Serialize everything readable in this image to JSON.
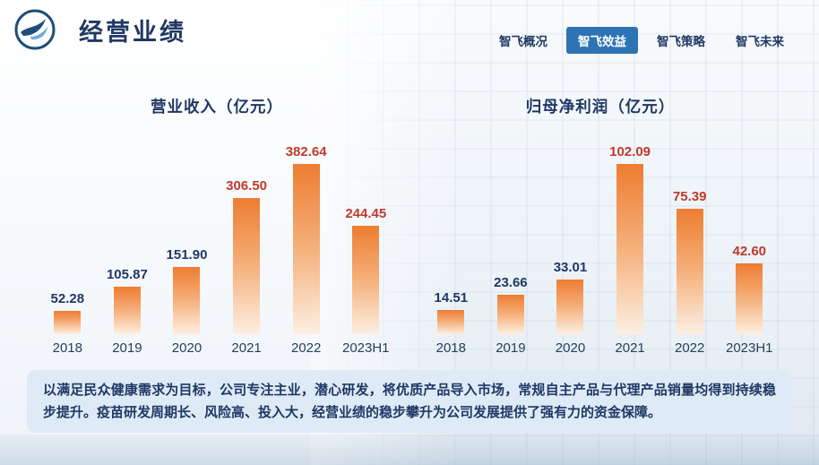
{
  "page": {
    "title": "经营业绩",
    "logo_icon": "bird-swoosh-logo"
  },
  "nav": {
    "items": [
      {
        "label": "智飞概况",
        "active": false
      },
      {
        "label": "智飞效益",
        "active": true
      },
      {
        "label": "智飞策略",
        "active": false
      },
      {
        "label": "智飞未来",
        "active": false
      }
    ]
  },
  "chart_data": [
    {
      "type": "bar",
      "title": "营业收入（亿元）",
      "categories": [
        "2018",
        "2019",
        "2020",
        "2021",
        "2022",
        "2023H1"
      ],
      "values": [
        52.28,
        105.87,
        151.9,
        306.5,
        382.64,
        244.45
      ],
      "ylim": [
        0,
        382.64
      ],
      "grid": false,
      "legend": "none",
      "value_label_colors": [
        "navy",
        "navy",
        "navy",
        "red",
        "red",
        "red"
      ]
    },
    {
      "type": "bar",
      "title": "归母净利润（亿元）",
      "categories": [
        "2018",
        "2019",
        "2020",
        "2021",
        "2022",
        "2023H1"
      ],
      "values": [
        14.51,
        23.66,
        33.01,
        102.09,
        75.39,
        42.6
      ],
      "ylim": [
        0,
        102.09
      ],
      "grid": false,
      "legend": "none",
      "value_label_colors": [
        "navy",
        "navy",
        "navy",
        "red",
        "red",
        "red"
      ]
    }
  ],
  "footer": {
    "text": "以满足民众健康需求为目标，公司专注主业，潜心研发，将优质产品导入市场，常规自主产品与代理产品销量均得到持续稳步提升。疫苗研发周期长、风险高、投入大，经营业绩的稳步攀升为公司发展提供了强有力的资金保障。"
  },
  "colors": {
    "navy": "#1F3864",
    "red": "#C0392B",
    "bar_top": "#ED7D31",
    "bar_bottom": "#FDEFE2",
    "nav_active_bg": "#2E74B5",
    "note_bg": "#DEEBF7"
  }
}
